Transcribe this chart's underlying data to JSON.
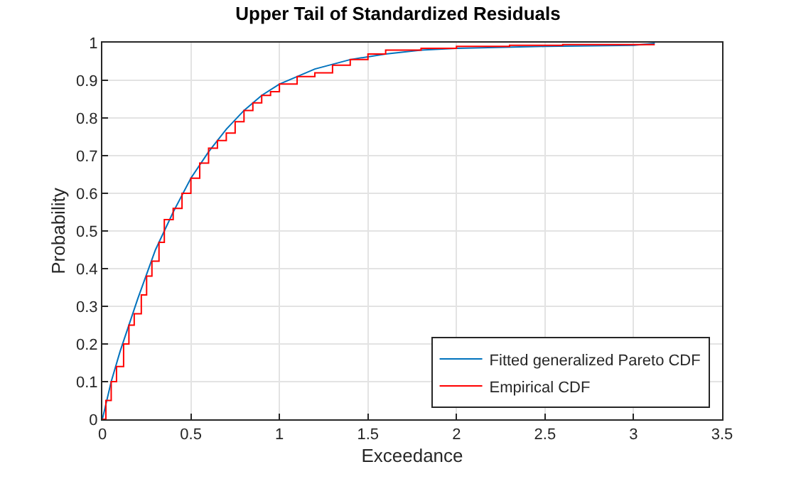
{
  "chart_data": {
    "type": "line",
    "title": "Upper Tail of Standardized Residuals",
    "xlabel": "Exceedance",
    "ylabel": "Probability",
    "xlim": [
      0,
      3.5
    ],
    "xticks": [
      0,
      0.5,
      1,
      1.5,
      2,
      2.5,
      3,
      3.5
    ],
    "ylim": [
      0,
      1
    ],
    "yticks": [
      0,
      0.1,
      0.2,
      0.3,
      0.4,
      0.5,
      0.6,
      0.7,
      0.8,
      0.9,
      1
    ],
    "grid": true,
    "legend": "bottom right",
    "marker": "none",
    "line_style": "solid",
    "series": [
      {
        "name": "Fitted generalized Pareto CDF",
        "color": "#0072bd",
        "x": [
          0,
          0.05,
          0.1,
          0.2,
          0.3,
          0.4,
          0.5,
          0.6,
          0.7,
          0.8,
          0.9,
          1.0,
          1.2,
          1.4,
          1.6,
          1.8,
          2.0,
          2.5,
          3.0,
          3.12
        ],
        "values": [
          0,
          0.1,
          0.18,
          0.32,
          0.45,
          0.55,
          0.64,
          0.71,
          0.77,
          0.82,
          0.86,
          0.89,
          0.93,
          0.955,
          0.97,
          0.98,
          0.985,
          0.99,
          0.993,
          0.998
        ]
      },
      {
        "name": "Empirical CDF",
        "color": "#ff0000",
        "type": "step",
        "x": [
          0,
          0.02,
          0.05,
          0.08,
          0.12,
          0.15,
          0.18,
          0.22,
          0.25,
          0.28,
          0.32,
          0.35,
          0.4,
          0.45,
          0.5,
          0.55,
          0.6,
          0.65,
          0.7,
          0.75,
          0.8,
          0.85,
          0.9,
          0.95,
          1.0,
          1.1,
          1.2,
          1.3,
          1.4,
          1.5,
          1.6,
          1.8,
          2.0,
          2.3,
          2.6,
          3.12
        ],
        "values": [
          0,
          0.05,
          0.1,
          0.14,
          0.2,
          0.25,
          0.28,
          0.33,
          0.38,
          0.42,
          0.47,
          0.53,
          0.56,
          0.6,
          0.64,
          0.68,
          0.72,
          0.74,
          0.76,
          0.79,
          0.82,
          0.84,
          0.86,
          0.87,
          0.89,
          0.91,
          0.92,
          0.94,
          0.955,
          0.97,
          0.98,
          0.985,
          0.99,
          0.993,
          0.995,
          0.995
        ]
      }
    ]
  }
}
